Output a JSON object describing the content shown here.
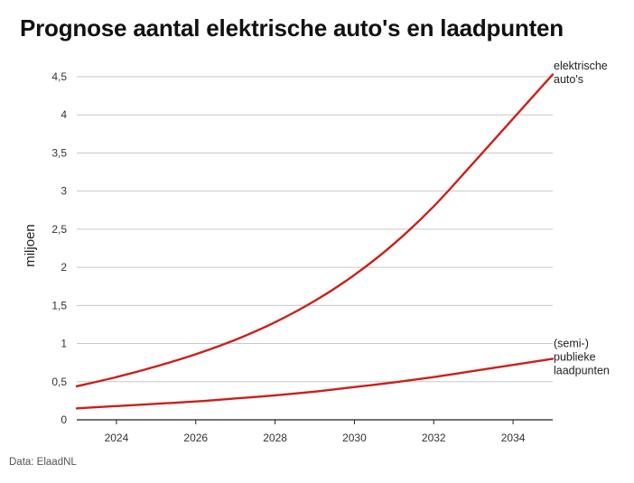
{
  "title": "Prognose aantal elektrische auto's en laadpunten",
  "source": "Data: ElaadNL",
  "chart_data": {
    "type": "line",
    "title": "Prognose aantal elektrische auto's en laadpunten",
    "xlabel": "",
    "ylabel": "miljoen",
    "xlim": [
      2023,
      2035
    ],
    "ylim": [
      0,
      4.5
    ],
    "x_ticks": [
      2024,
      2026,
      2028,
      2030,
      2032,
      2034
    ],
    "y_ticks": [
      {
        "value": 0,
        "label": "0"
      },
      {
        "value": 0.5,
        "label": "0,5"
      },
      {
        "value": 1,
        "label": "1"
      },
      {
        "value": 1.5,
        "label": "1,5"
      },
      {
        "value": 2,
        "label": "2"
      },
      {
        "value": 2.5,
        "label": "2,5"
      },
      {
        "value": 3,
        "label": "3"
      },
      {
        "value": 3.5,
        "label": "3,5"
      },
      {
        "value": 4,
        "label": "4"
      },
      {
        "value": 4.5,
        "label": "4,5"
      }
    ],
    "grid": true,
    "line_color": "#cc1f1a",
    "x": [
      2023,
      2024,
      2025,
      2026,
      2027,
      2028,
      2029,
      2030,
      2031,
      2032,
      2033,
      2034,
      2035
    ],
    "series": [
      {
        "label_lines": [
          "elektrische",
          "auto's"
        ],
        "values": [
          0.44,
          0.56,
          0.7,
          0.86,
          1.05,
          1.28,
          1.56,
          1.9,
          2.31,
          2.8,
          3.37,
          3.95,
          4.53
        ]
      },
      {
        "label_lines": [
          "(semi-)",
          "publieke",
          "laadpunten"
        ],
        "values": [
          0.15,
          0.18,
          0.21,
          0.24,
          0.28,
          0.32,
          0.37,
          0.43,
          0.49,
          0.56,
          0.64,
          0.72,
          0.8
        ]
      }
    ]
  }
}
